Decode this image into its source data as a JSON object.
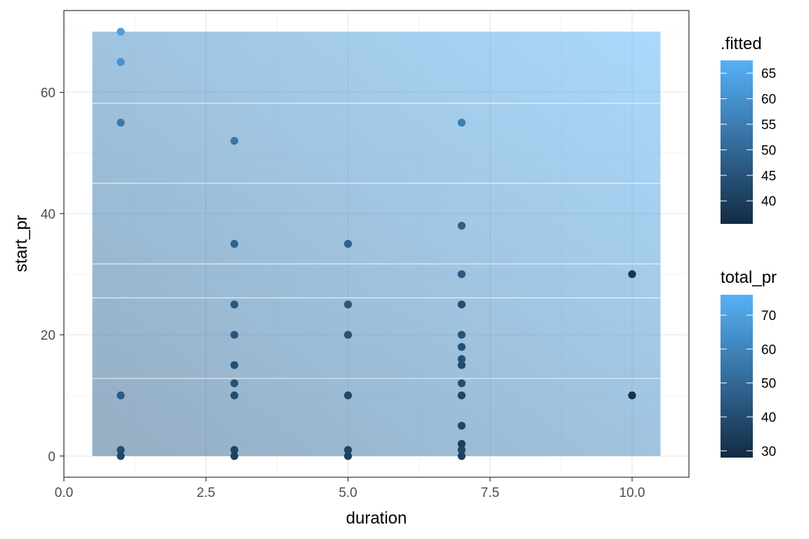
{
  "chart_data": {
    "type": "scatter",
    "xlabel": "duration",
    "ylabel": "start_pr",
    "xlim": [
      0,
      11
    ],
    "ylim": [
      -3.5,
      73.5
    ],
    "x_ticks": [
      0,
      2.5,
      5,
      7.5,
      10
    ],
    "x_tick_labels": [
      "0.0",
      "2.5",
      "5.0",
      "7.5",
      "10.0"
    ],
    "y_ticks": [
      0,
      20,
      40,
      60
    ],
    "y_tick_labels": [
      "0",
      "20",
      "40",
      "60"
    ],
    "grid": true,
    "fitted_background": {
      "description_of_mark": "raster tile layer of .fitted over duration range 0.5–10.5 and start_pr range 0–70",
      "x_range": [
        0.5,
        10.5
      ],
      "y_range": [
        0,
        70
      ],
      "color_low": "#132B43",
      "color_high": "#56B1F7"
    },
    "fitted_contour_levels": [
      12.8,
      26.1,
      31.7,
      45,
      58.2
    ],
    "points": [
      {
        "x": 1,
        "y": 70,
        "total_pr": 70
      },
      {
        "x": 1,
        "y": 65,
        "total_pr": 65
      },
      {
        "x": 1,
        "y": 55,
        "total_pr": 56
      },
      {
        "x": 1,
        "y": 10,
        "total_pr": 45
      },
      {
        "x": 1,
        "y": 1,
        "total_pr": 40
      },
      {
        "x": 1,
        "y": 0,
        "total_pr": 38
      },
      {
        "x": 3,
        "y": 52,
        "total_pr": 55
      },
      {
        "x": 3,
        "y": 35,
        "total_pr": 48
      },
      {
        "x": 3,
        "y": 25,
        "total_pr": 44
      },
      {
        "x": 3,
        "y": 20,
        "total_pr": 43
      },
      {
        "x": 3,
        "y": 15,
        "total_pr": 41
      },
      {
        "x": 3,
        "y": 12,
        "total_pr": 42
      },
      {
        "x": 3,
        "y": 10,
        "total_pr": 40
      },
      {
        "x": 3,
        "y": 1,
        "total_pr": 37
      },
      {
        "x": 3,
        "y": 0,
        "total_pr": 36
      },
      {
        "x": 5,
        "y": 35,
        "total_pr": 47
      },
      {
        "x": 5,
        "y": 25,
        "total_pr": 44
      },
      {
        "x": 5,
        "y": 20,
        "total_pr": 42
      },
      {
        "x": 5,
        "y": 10,
        "total_pr": 38
      },
      {
        "x": 5,
        "y": 1,
        "total_pr": 37
      },
      {
        "x": 5,
        "y": 0,
        "total_pr": 36
      },
      {
        "x": 7,
        "y": 55,
        "total_pr": 58
      },
      {
        "x": 7,
        "y": 38,
        "total_pr": 47
      },
      {
        "x": 7,
        "y": 30,
        "total_pr": 45
      },
      {
        "x": 7,
        "y": 25,
        "total_pr": 40
      },
      {
        "x": 7,
        "y": 20,
        "total_pr": 42
      },
      {
        "x": 7,
        "y": 18,
        "total_pr": 41
      },
      {
        "x": 7,
        "y": 16,
        "total_pr": 41
      },
      {
        "x": 7,
        "y": 15,
        "total_pr": 39
      },
      {
        "x": 7,
        "y": 12,
        "total_pr": 40
      },
      {
        "x": 7,
        "y": 10,
        "total_pr": 37
      },
      {
        "x": 7,
        "y": 5,
        "total_pr": 38
      },
      {
        "x": 7,
        "y": 2,
        "total_pr": 35
      },
      {
        "x": 7,
        "y": 1,
        "total_pr": 37
      },
      {
        "x": 7,
        "y": 0,
        "total_pr": 36
      },
      {
        "x": 10,
        "y": 30,
        "total_pr": 32
      },
      {
        "x": 10,
        "y": 10,
        "total_pr": 30
      }
    ],
    "legends": [
      {
        "title": ".fitted",
        "tick_values": [
          40,
          45,
          50,
          55,
          60,
          65
        ],
        "tick_labels": [
          "40",
          "45",
          "50",
          "55",
          "60",
          "65"
        ],
        "range": [
          35.5,
          67.5
        ],
        "color_low": "#132B43",
        "color_high": "#56B1F7"
      },
      {
        "title": "total_pr",
        "tick_values": [
          30,
          40,
          50,
          60,
          70
        ],
        "tick_labels": [
          "30",
          "40",
          "50",
          "60",
          "70"
        ],
        "range": [
          28,
          76
        ],
        "color_low": "#132B43",
        "color_high": "#56B1F7"
      }
    ]
  }
}
